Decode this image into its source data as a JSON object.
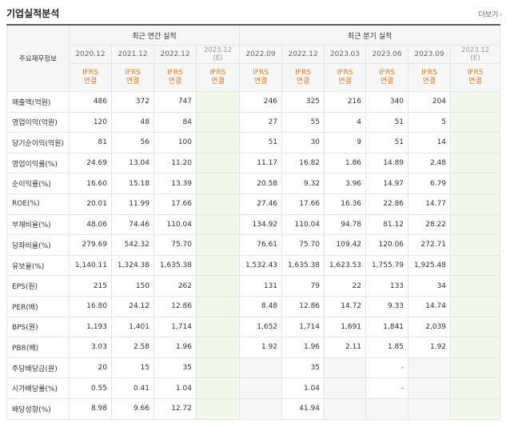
{
  "title": "기업실적분석",
  "more_label": "더보기",
  "row_header": "주요재무정보",
  "annual_header": "최근 연간 실적",
  "quarter_header": "최근 분기 실적",
  "annual_periods": [
    {
      "date": "2020.12",
      "est": "",
      "ifrs1": "IFRS",
      "ifrs2": "연결"
    },
    {
      "date": "2021.12",
      "est": "",
      "ifrs1": "IFRS",
      "ifrs2": "연결"
    },
    {
      "date": "2022.12",
      "est": "",
      "ifrs1": "IFRS",
      "ifrs2": "연결"
    },
    {
      "date": "2023.12",
      "est": "(E)",
      "ifrs1": "IFRS",
      "ifrs2": "연결"
    }
  ],
  "quarter_periods": [
    {
      "date": "2022.09",
      "est": "",
      "ifrs1": "IFRS",
      "ifrs2": "연결"
    },
    {
      "date": "2022.12",
      "est": "",
      "ifrs1": "IFRS",
      "ifrs2": "연결"
    },
    {
      "date": "2023.03",
      "est": "",
      "ifrs1": "IFRS",
      "ifrs2": "연결"
    },
    {
      "date": "2023.06",
      "est": "",
      "ifrs1": "IFRS",
      "ifrs2": "연결"
    },
    {
      "date": "2023.09",
      "est": "",
      "ifrs1": "IFRS",
      "ifrs2": "연결"
    },
    {
      "date": "2023.12",
      "est": "(E)",
      "ifrs1": "IFRS",
      "ifrs2": "연결"
    }
  ],
  "rows": [
    {
      "label": "매출액(억원)",
      "annual": [
        "486",
        "372",
        "747",
        ""
      ],
      "quarter": [
        "246",
        "325",
        "216",
        "340",
        "204",
        ""
      ]
    },
    {
      "label": "영업이익(억원)",
      "annual": [
        "120",
        "48",
        "84",
        ""
      ],
      "quarter": [
        "27",
        "55",
        "4",
        "51",
        "5",
        ""
      ]
    },
    {
      "label": "당기순이익(억원)",
      "annual": [
        "81",
        "56",
        "100",
        ""
      ],
      "quarter": [
        "51",
        "30",
        "9",
        "51",
        "14",
        ""
      ]
    },
    {
      "label": "영업이익률(%)",
      "annual": [
        "24.69",
        "13.04",
        "11.20",
        ""
      ],
      "quarter": [
        "11.17",
        "16.82",
        "1.86",
        "14.89",
        "2.48",
        ""
      ]
    },
    {
      "label": "순이익률(%)",
      "annual": [
        "16.60",
        "15.18",
        "13.39",
        ""
      ],
      "quarter": [
        "20.58",
        "9.32",
        "3.96",
        "14.97",
        "6.79",
        ""
      ]
    },
    {
      "label": "ROE(%)",
      "annual": [
        "20.01",
        "11.99",
        "17.66",
        ""
      ],
      "quarter": [
        "27.46",
        "17.66",
        "16.36",
        "22.86",
        "14.77",
        ""
      ]
    },
    {
      "label": "부채비율(%)",
      "annual": [
        "48.06",
        "74.46",
        "110.04",
        ""
      ],
      "quarter": [
        "134.92",
        "110.04",
        "94.78",
        "81.12",
        "28.22",
        ""
      ]
    },
    {
      "label": "당좌비율(%)",
      "annual": [
        "279.69",
        "542.32",
        "75.70",
        ""
      ],
      "quarter": [
        "76.61",
        "75.70",
        "109.42",
        "120.06",
        "272.71",
        ""
      ]
    },
    {
      "label": "유보율(%)",
      "annual": [
        "1,140.11",
        "1,324.38",
        "1,635.38",
        ""
      ],
      "quarter": [
        "1,532.43",
        "1,635.38",
        "1,623.53",
        "1,755.79",
        "1,925.48",
        ""
      ]
    },
    {
      "label": "EPS(원)",
      "annual": [
        "215",
        "150",
        "262",
        ""
      ],
      "quarter": [
        "131",
        "79",
        "22",
        "133",
        "34",
        ""
      ]
    },
    {
      "label": "PER(배)",
      "annual": [
        "16.80",
        "24.12",
        "12.86",
        ""
      ],
      "quarter": [
        "8.48",
        "12.86",
        "14.72",
        "9.33",
        "14.74",
        ""
      ]
    },
    {
      "label": "BPS(원)",
      "annual": [
        "1,193",
        "1,401",
        "1,714",
        ""
      ],
      "quarter": [
        "1,652",
        "1,714",
        "1,691",
        "1,841",
        "2,039",
        ""
      ]
    },
    {
      "label": "PBR(배)",
      "annual": [
        "3.03",
        "2.58",
        "1.96",
        ""
      ],
      "quarter": [
        "1.92",
        "1.96",
        "2.11",
        "1.85",
        "1.92",
        ""
      ]
    },
    {
      "label": "주당배당금(원)",
      "annual": [
        "20",
        "15",
        "35",
        ""
      ],
      "quarter": [
        "",
        "35",
        "",
        "-",
        "",
        ""
      ]
    },
    {
      "label": "시가배당률(%)",
      "annual": [
        "0.55",
        "0.41",
        "1.04",
        ""
      ],
      "quarter": [
        "",
        "1.04",
        "",
        "-",
        "",
        ""
      ]
    },
    {
      "label": "배당성향(%)",
      "annual": [
        "8.98",
        "9.66",
        "12.72",
        ""
      ],
      "quarter": [
        "",
        "41.94",
        "",
        "",
        "",
        ""
      ]
    }
  ]
}
